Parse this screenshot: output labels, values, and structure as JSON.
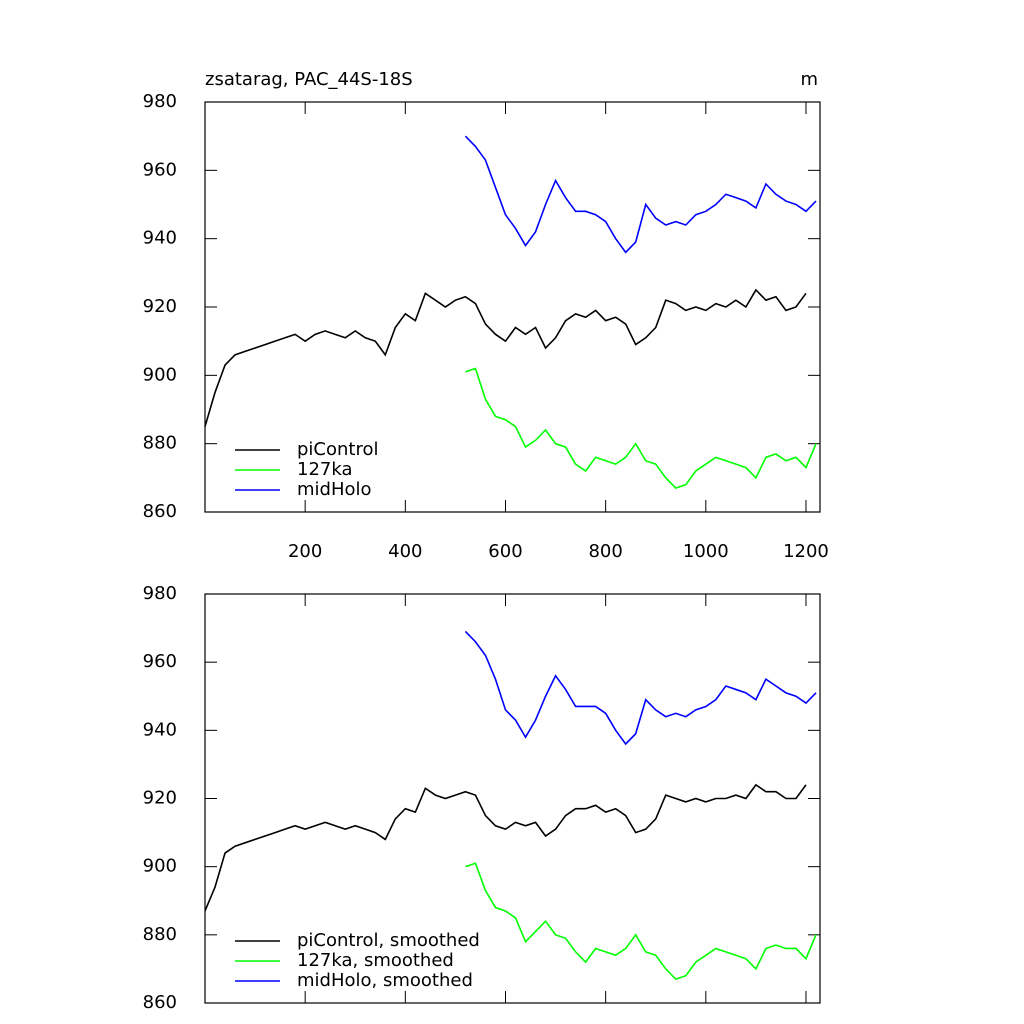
{
  "chart_data": [
    {
      "type": "line",
      "title": "zsatarag, PAC_44S-18S",
      "units": "m",
      "x": [
        0,
        20,
        40,
        60,
        80,
        100,
        120,
        140,
        160,
        180,
        200,
        220,
        240,
        260,
        280,
        300,
        320,
        340,
        360,
        380,
        400,
        420,
        440,
        460,
        480,
        500,
        520,
        540,
        560,
        580,
        600,
        620,
        640,
        660,
        680,
        700,
        720,
        740,
        760,
        780,
        800,
        820,
        840,
        860,
        880,
        900,
        920,
        940,
        960,
        980,
        1000,
        1020,
        1040,
        1060,
        1080,
        1100,
        1120,
        1140,
        1160,
        1180,
        1200,
        1220
      ],
      "xlim": [
        0,
        1228
      ],
      "xticks": [
        200,
        400,
        600,
        800,
        1000,
        1200
      ],
      "ylim": [
        860,
        980
      ],
      "yticks": [
        860,
        880,
        900,
        920,
        940,
        960,
        980
      ],
      "legend": "lower left",
      "series": [
        {
          "name": "piControl",
          "color": "#000000",
          "values": [
            885,
            895,
            903,
            906,
            907,
            908,
            909,
            910,
            911,
            912,
            910,
            912,
            913,
            912,
            911,
            913,
            911,
            910,
            906,
            914,
            918,
            916,
            924,
            922,
            920,
            922,
            923,
            921,
            915,
            912,
            910,
            914,
            912,
            914,
            908,
            911,
            916,
            918,
            917,
            919,
            916,
            917,
            915,
            909,
            911,
            914,
            922,
            921,
            919,
            920,
            919,
            921,
            920,
            922,
            920,
            925,
            922,
            923,
            919,
            920,
            924,
            null
          ]
        },
        {
          "name": "127ka",
          "color": "#00ff00",
          "values": [
            null,
            null,
            null,
            null,
            null,
            null,
            null,
            null,
            null,
            null,
            null,
            null,
            null,
            null,
            null,
            null,
            null,
            null,
            null,
            null,
            null,
            null,
            null,
            null,
            null,
            null,
            901,
            902,
            893,
            888,
            887,
            885,
            879,
            881,
            884,
            880,
            879,
            874,
            872,
            876,
            875,
            874,
            876,
            880,
            875,
            874,
            870,
            867,
            868,
            872,
            874,
            876,
            875,
            874,
            873,
            870,
            876,
            877,
            875,
            876,
            873,
            880
          ]
        },
        {
          "name": "midHolo",
          "color": "#0000ff",
          "values": [
            null,
            null,
            null,
            null,
            null,
            null,
            null,
            null,
            null,
            null,
            null,
            null,
            null,
            null,
            null,
            null,
            null,
            null,
            null,
            null,
            null,
            null,
            null,
            null,
            null,
            null,
            970,
            967,
            963,
            955,
            947,
            943,
            938,
            942,
            950,
            957,
            952,
            948,
            948,
            947,
            945,
            940,
            936,
            939,
            950,
            946,
            944,
            945,
            944,
            947,
            948,
            950,
            953,
            952,
            951,
            949,
            956,
            953,
            951,
            950,
            948,
            951
          ]
        }
      ]
    },
    {
      "type": "line",
      "x": [
        0,
        20,
        40,
        60,
        80,
        100,
        120,
        140,
        160,
        180,
        200,
        220,
        240,
        260,
        280,
        300,
        320,
        340,
        360,
        380,
        400,
        420,
        440,
        460,
        480,
        500,
        520,
        540,
        560,
        580,
        600,
        620,
        640,
        660,
        680,
        700,
        720,
        740,
        760,
        780,
        800,
        820,
        840,
        860,
        880,
        900,
        920,
        940,
        960,
        980,
        1000,
        1020,
        1040,
        1060,
        1080,
        1100,
        1120,
        1140,
        1160,
        1180,
        1200,
        1220
      ],
      "xlim": [
        0,
        1228
      ],
      "ylim": [
        860,
        980
      ],
      "yticks": [
        860,
        880,
        900,
        920,
        940,
        960,
        980
      ],
      "legend": "lower left",
      "series": [
        {
          "name": "piControl, smoothed",
          "color": "#000000",
          "values": [
            887,
            894,
            904,
            906,
            907,
            908,
            909,
            910,
            911,
            912,
            911,
            912,
            913,
            912,
            911,
            912,
            911,
            910,
            908,
            914,
            917,
            916,
            923,
            921,
            920,
            921,
            922,
            921,
            915,
            912,
            911,
            913,
            912,
            913,
            909,
            911,
            915,
            917,
            917,
            918,
            916,
            917,
            915,
            910,
            911,
            914,
            921,
            920,
            919,
            920,
            919,
            920,
            920,
            921,
            920,
            924,
            922,
            922,
            920,
            920,
            924,
            null
          ]
        },
        {
          "name": "127ka, smoothed",
          "color": "#00ff00",
          "values": [
            null,
            null,
            null,
            null,
            null,
            null,
            null,
            null,
            null,
            null,
            null,
            null,
            null,
            null,
            null,
            null,
            null,
            null,
            null,
            null,
            null,
            null,
            null,
            null,
            null,
            null,
            900,
            901,
            893,
            888,
            887,
            885,
            878,
            881,
            884,
            880,
            879,
            875,
            872,
            876,
            875,
            874,
            876,
            880,
            875,
            874,
            870,
            867,
            868,
            872,
            874,
            876,
            875,
            874,
            873,
            870,
            876,
            877,
            876,
            876,
            873,
            880
          ]
        },
        {
          "name": "midHolo, smoothed",
          "color": "#0000ff",
          "values": [
            null,
            null,
            null,
            null,
            null,
            null,
            null,
            null,
            null,
            null,
            null,
            null,
            null,
            null,
            null,
            null,
            null,
            null,
            null,
            null,
            null,
            null,
            null,
            null,
            null,
            null,
            969,
            966,
            962,
            955,
            946,
            943,
            938,
            943,
            950,
            956,
            952,
            947,
            947,
            947,
            945,
            940,
            936,
            939,
            949,
            946,
            944,
            945,
            944,
            946,
            947,
            949,
            953,
            952,
            951,
            949,
            955,
            953,
            951,
            950,
            948,
            951
          ]
        }
      ]
    }
  ]
}
